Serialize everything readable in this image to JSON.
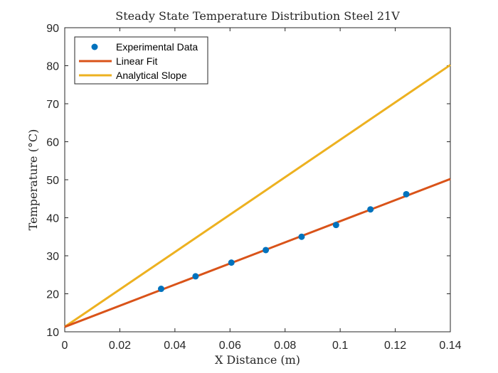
{
  "chart_data": {
    "type": "scatter",
    "title": "Steady State Temperature Distribution Steel 21V",
    "xlabel": "X Distance (m)",
    "ylabel": "Temperature (°C)",
    "xlim": [
      0,
      0.14
    ],
    "ylim": [
      10,
      90
    ],
    "xticks": [
      "0",
      "0.02",
      "0.04",
      "0.06",
      "0.08",
      "0.1",
      "0.12",
      "0.14"
    ],
    "yticks": [
      "10",
      "20",
      "30",
      "40",
      "50",
      "60",
      "70",
      "80",
      "90"
    ],
    "grid": false,
    "legend_position": "top-left",
    "series": [
      {
        "name": "Experimental Data",
        "kind": "scatter",
        "color": "#0072BD",
        "x": [
          0.035,
          0.0475,
          0.0605,
          0.073,
          0.086,
          0.0985,
          0.111,
          0.124
        ],
        "y": [
          21.3,
          24.6,
          28.2,
          31.5,
          35.0,
          38.1,
          42.2,
          46.2
        ]
      },
      {
        "name": "Linear Fit",
        "kind": "line",
        "color": "#D95319",
        "x": [
          0,
          0.14
        ],
        "y": [
          11.3,
          50.2
        ]
      },
      {
        "name": "Analytical Slope",
        "kind": "line",
        "color": "#EDB120",
        "x": [
          0,
          0.14
        ],
        "y": [
          11.3,
          80.2
        ]
      }
    ]
  }
}
